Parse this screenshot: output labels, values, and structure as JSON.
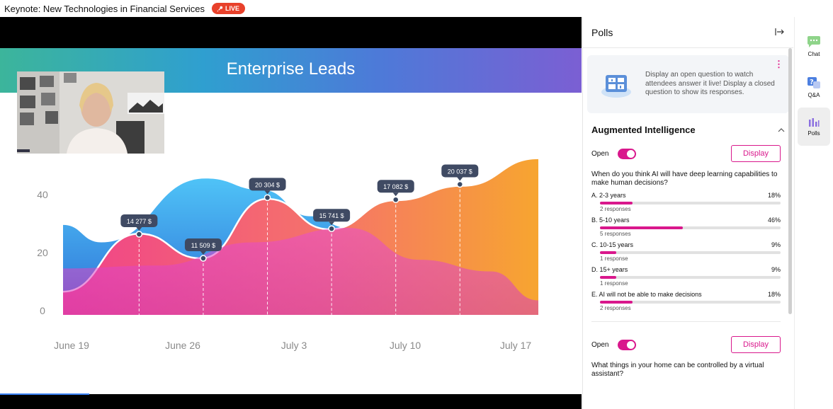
{
  "header": {
    "title": "Keynote: New Technologies in Financial Services",
    "live_label": "LIVE"
  },
  "slide": {
    "title": "Enterprise Leads"
  },
  "chart_data": {
    "type": "area",
    "title": "Enterprise Leads",
    "x_ticks": [
      "June 19",
      "June 26",
      "July 3",
      "July 10",
      "July 17"
    ],
    "y_ticks": [
      0,
      20,
      40
    ],
    "ylim": [
      0,
      60
    ],
    "annotations": [
      {
        "label": "14 277 $",
        "x_frac": 0.16,
        "y": 27.8
      },
      {
        "label": "11 509 $",
        "x_frac": 0.295,
        "y": 19.5
      },
      {
        "label": "20 304 $",
        "x_frac": 0.43,
        "y": 40.4
      },
      {
        "label": "15 741 $",
        "x_frac": 0.565,
        "y": 29.7
      },
      {
        "label": "17 082 $",
        "x_frac": 0.7,
        "y": 39.7
      },
      {
        "label": "20 037 $",
        "x_frac": 0.835,
        "y": 45.0
      }
    ],
    "series": [
      {
        "color": "#3a9de0",
        "points": [
          [
            0,
            31
          ],
          [
            0.08,
            25
          ],
          [
            0.3,
            47
          ],
          [
            0.42,
            43
          ],
          [
            0.52,
            34
          ],
          [
            0.6,
            30
          ]
        ]
      },
      {
        "color": "#f5a623",
        "points": [
          [
            0,
            8
          ],
          [
            0.16,
            28
          ],
          [
            0.29,
            19.5
          ],
          [
            0.43,
            40
          ],
          [
            0.56,
            29.5
          ],
          [
            0.7,
            39.5
          ],
          [
            0.84,
            44.5
          ],
          [
            1,
            54
          ]
        ]
      },
      {
        "color": "#d943c8",
        "points": [
          [
            0,
            16
          ],
          [
            0.2,
            17
          ],
          [
            0.4,
            25
          ],
          [
            0.6,
            30
          ],
          [
            0.75,
            19
          ],
          [
            0.9,
            15
          ],
          [
            1,
            5
          ]
        ]
      }
    ]
  },
  "polls": {
    "title": "Polls",
    "collapse_icon": "→|",
    "info_text": "Display an open question to watch attendees answer it live! Display a closed question to show its responses.",
    "section_title": "Augmented Intelligence",
    "poll1": {
      "status": "Open",
      "display_label": "Display",
      "question": "When do you think AI will have deep learning capabilities to make human decisions?",
      "options": [
        {
          "label": "A. 2-3 years",
          "pct": "18%",
          "fill": 0.18,
          "responses": "2 responses"
        },
        {
          "label": "B. 5-10 years",
          "pct": "46%",
          "fill": 0.46,
          "responses": "5 responses"
        },
        {
          "label": "C. 10-15 years",
          "pct": "9%",
          "fill": 0.09,
          "responses": "1 response"
        },
        {
          "label": "D. 15+ years",
          "pct": "9%",
          "fill": 0.09,
          "responses": "1 response"
        },
        {
          "label": "E. AI will not be able to make decisions",
          "pct": "18%",
          "fill": 0.18,
          "responses": "2 responses"
        }
      ]
    },
    "poll2": {
      "status": "Open",
      "display_label": "Display",
      "question": "What things in your home can be controlled by a virtual assistant?"
    }
  },
  "rail": {
    "chat": "Chat",
    "qa": "Q&A",
    "polls": "Polls"
  },
  "colors": {
    "accent": "#d9188c",
    "live": "#e8412b"
  }
}
